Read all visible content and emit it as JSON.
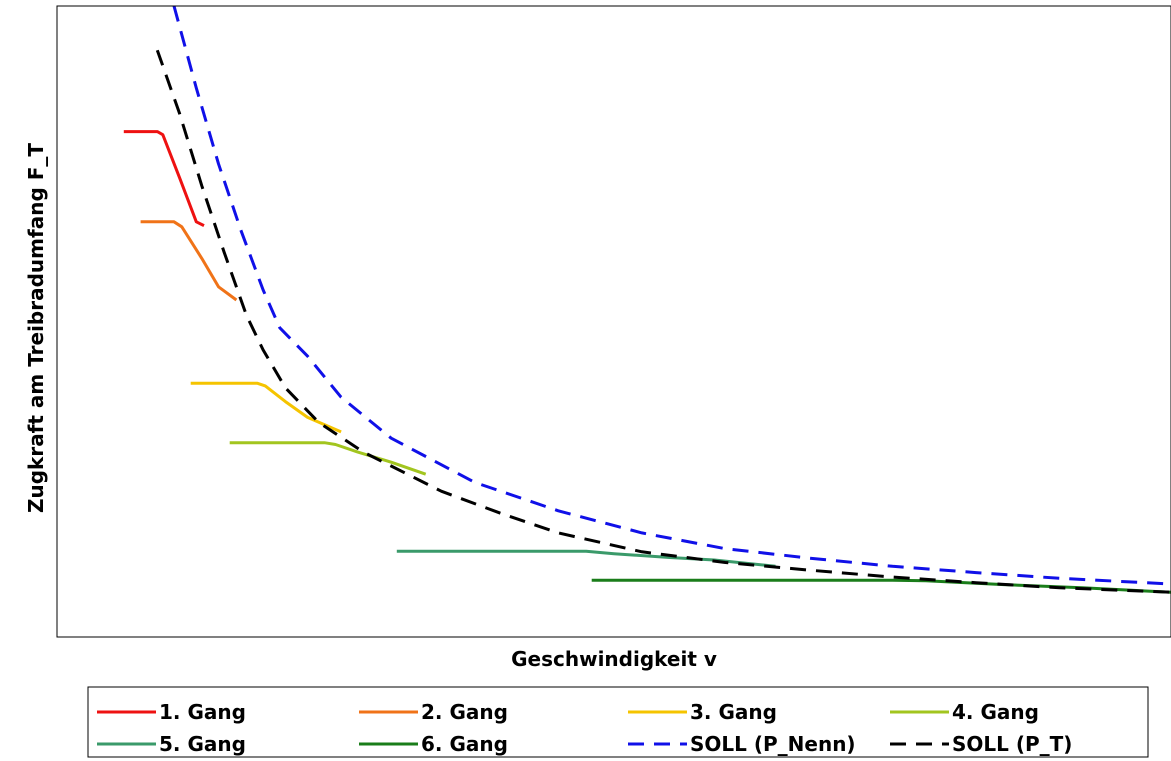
{
  "chart_data": {
    "type": "line",
    "title": "",
    "xlabel": "Geschwindigkeit v",
    "ylabel": "Zugkraft am Treibradumfang F_T",
    "xlim": [
      0,
      100
    ],
    "ylim": [
      0,
      100
    ],
    "grid": false,
    "ticks_shown": false,
    "legend_position": "bottom",
    "legend_columns": 4,
    "series": [
      {
        "name": "1. Gang",
        "color": "#ee1111",
        "dash": "solid",
        "x": [
          6.0,
          9.0,
          9.5,
          11.0,
          12.5,
          13.2
        ],
        "y": [
          80.1,
          80.1,
          79.6,
          72.8,
          65.8,
          65.2
        ]
      },
      {
        "name": "2. Gang",
        "color": "#f07318",
        "dash": "solid",
        "x": [
          7.5,
          10.5,
          11.2,
          13.0,
          14.5,
          16.1
        ],
        "y": [
          65.8,
          65.8,
          65.0,
          60.0,
          55.5,
          53.4
        ]
      },
      {
        "name": "3. Gang",
        "color": "#f5c400",
        "dash": "solid",
        "x": [
          12.0,
          18.0,
          18.7,
          20.5,
          22.5,
          25.5
        ],
        "y": [
          40.2,
          40.2,
          39.8,
          37.3,
          34.8,
          32.5
        ]
      },
      {
        "name": "4. Gang",
        "color": "#a2c51f",
        "dash": "solid",
        "x": [
          15.5,
          24.0,
          25.0,
          27.0,
          30.0,
          33.1
        ],
        "y": [
          30.8,
          30.8,
          30.5,
          29.3,
          27.7,
          25.8
        ]
      },
      {
        "name": "5. Gang",
        "color": "#3a9a6a",
        "dash": "solid",
        "x": [
          30.5,
          47.5,
          50.0,
          55.0,
          59.0,
          64.5
        ],
        "y": [
          13.6,
          13.6,
          13.2,
          12.6,
          12.2,
          11.2
        ]
      },
      {
        "name": "6. Gang",
        "color": "#1a7d1a",
        "dash": "solid",
        "x": [
          48.0,
          75.0,
          78.0,
          85.0,
          92.0,
          100.0
        ],
        "y": [
          9.0,
          9.0,
          8.9,
          8.3,
          7.8,
          7.1
        ]
      },
      {
        "name": "SOLL (P_Nenn)",
        "color": "#1010e8",
        "dash": "dashed",
        "x": [
          10.5,
          12.5,
          14.5,
          16.5,
          18.5,
          20.0,
          22.5,
          25.5,
          30.0,
          37.5,
          45.0,
          52.5,
          60.0,
          67.5,
          75.0,
          82.5,
          90.0,
          100.0
        ],
        "y": [
          100.0,
          87.0,
          75.0,
          64.5,
          55.0,
          49.0,
          44.5,
          38.0,
          31.5,
          24.5,
          20.0,
          16.5,
          14.0,
          12.5,
          11.2,
          10.2,
          9.3,
          8.4
        ]
      },
      {
        "name": "SOLL (P_T)",
        "color": "#000000",
        "dash": "dashed",
        "x": [
          9.0,
          11.0,
          13.0,
          15.0,
          17.0,
          18.5,
          20.5,
          23.5,
          27.5,
          34.5,
          40.0,
          45.0,
          52.5,
          60.0,
          67.5,
          75.0,
          82.5,
          90.0,
          100.0
        ],
        "y": [
          93.0,
          83.0,
          71.5,
          61.0,
          51.0,
          45.5,
          39.5,
          34.0,
          29.3,
          23.1,
          19.5,
          16.5,
          13.5,
          11.8,
          10.6,
          9.5,
          8.6,
          7.8,
          7.1
        ]
      }
    ]
  }
}
